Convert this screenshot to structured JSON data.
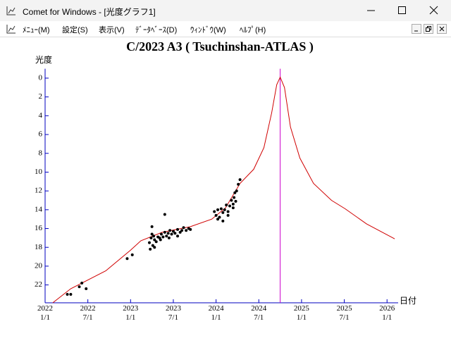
{
  "window": {
    "title": "Comet for Windows - [光度グラフ1]",
    "menu": [
      "ﾒﾆｭｰ(M)",
      "設定(S)",
      "表示(V)",
      "ﾃﾞｰﾀﾍﾞｰｽ(D)",
      "ｳｨﾝﾄﾞｳ(W)",
      "ﾍﾙﾌﾟ(H)"
    ]
  },
  "chart_data": {
    "type": "line",
    "title": "C/2023 A3 ( Tsuchinshan-ATLAS )",
    "y_label": "光度",
    "x_label": "日付",
    "xlim": [
      2022,
      2026.13
    ],
    "ylim": [
      23.9,
      -1
    ],
    "xticks": [
      {
        "value": 2022,
        "label": "2022\n1/1"
      },
      {
        "value": 2022.5,
        "label": "2022\n7/1"
      },
      {
        "value": 2023,
        "label": "2023\n1/1"
      },
      {
        "value": 2023.5,
        "label": "2023\n7/1"
      },
      {
        "value": 2024,
        "label": "2024\n1/1"
      },
      {
        "value": 2024.5,
        "label": "2024\n7/1"
      },
      {
        "value": 2025,
        "label": "2025\n1/1"
      },
      {
        "value": 2025.5,
        "label": "2025\n7/1"
      },
      {
        "value": 2026,
        "label": "2026\n1/1"
      }
    ],
    "yticks": [
      0,
      2,
      4,
      6,
      8,
      10,
      12,
      14,
      16,
      18,
      20,
      22
    ],
    "axis_color": "#0000c0",
    "vline": {
      "x": 2024.75,
      "color": "#cc00cc"
    },
    "series": [
      {
        "type": "line",
        "color": "#d00000",
        "x": [
          2022.09,
          2022.3,
          2022.71,
          2023.0,
          2023.12,
          2023.37,
          2023.7,
          2023.95,
          2024.11,
          2024.28,
          2024.44,
          2024.56,
          2024.65,
          2024.71,
          2024.75,
          2024.8,
          2024.87,
          2024.98,
          2025.14,
          2025.35,
          2025.51,
          2025.76,
          2026.09
        ],
        "values": [
          23.9,
          22.4,
          20.5,
          18.3,
          17.3,
          16.4,
          15.8,
          15.0,
          13.8,
          11.2,
          9.7,
          7.4,
          3.7,
          0.7,
          -0.1,
          1.0,
          5.2,
          8.5,
          11.2,
          13.0,
          13.9,
          15.5,
          17.1
        ]
      },
      {
        "type": "scatter",
        "color": "#000000",
        "x": [
          2022.26,
          2022.3,
          2022.4,
          2022.43,
          2022.48,
          2022.96,
          2023.02,
          2023.22,
          2023.23,
          2023.24,
          2023.25,
          2023.26,
          2023.27,
          2023.28,
          2023.3,
          2023.32,
          2023.34,
          2023.36,
          2023.38,
          2023.4,
          2023.42,
          2023.44,
          2023.46,
          2023.48,
          2023.5,
          2023.52,
          2023.55,
          2023.58,
          2023.6,
          2023.62,
          2023.65,
          2023.68,
          2023.7,
          2023.4,
          2023.28,
          2023.25,
          2023.35,
          2023.45,
          2023.55,
          2023.98,
          2024.0,
          2024.02,
          2024.04,
          2024.06,
          2024.08,
          2024.1,
          2024.12,
          2024.14,
          2024.16,
          2024.18,
          2024.2,
          2024.21,
          2024.22,
          2024.23,
          2024.24,
          2024.26,
          2024.28,
          2024.02,
          2024.08,
          2024.14,
          2024.2
        ],
        "values": [
          23.0,
          23.0,
          22.2,
          21.8,
          22.4,
          19.2,
          18.8,
          17.5,
          18.2,
          17.0,
          15.8,
          17.8,
          16.8,
          17.2,
          17.4,
          16.9,
          17.0,
          16.6,
          16.9,
          16.4,
          16.8,
          16.5,
          16.2,
          16.6,
          16.3,
          16.5,
          16.1,
          16.4,
          16.2,
          15.9,
          16.2,
          16.0,
          16.1,
          14.5,
          18.0,
          16.6,
          17.2,
          17.0,
          16.8,
          14.2,
          14.6,
          14.0,
          14.8,
          13.9,
          14.3,
          14.0,
          13.5,
          14.2,
          13.6,
          13.0,
          13.4,
          12.7,
          12.2,
          13.1,
          12.0,
          11.3,
          10.8,
          15.0,
          15.2,
          14.6,
          13.8
        ]
      }
    ]
  }
}
